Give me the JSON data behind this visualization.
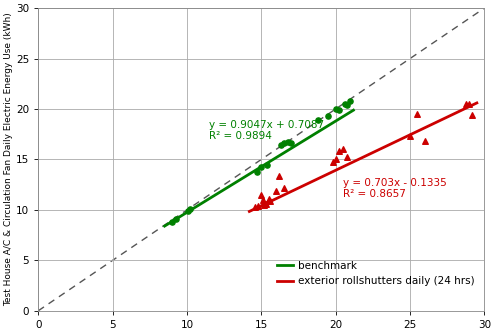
{
  "xlim": [
    0,
    30
  ],
  "ylim": [
    0,
    30
  ],
  "xticks": [
    0,
    5,
    10,
    15,
    20,
    25,
    30
  ],
  "yticks": [
    0,
    5,
    10,
    15,
    20,
    25,
    30
  ],
  "ylabel": "Test House A/C & Circulation Fan Daily Electric Energy Use (kWh)",
  "green_scatter_x": [
    9.0,
    9.3,
    10.1,
    10.2,
    14.7,
    15.0,
    15.4,
    16.3,
    16.5,
    16.8,
    17.0,
    18.8,
    19.5,
    20.0,
    20.2,
    20.6,
    20.8,
    21.0
  ],
  "green_scatter_y": [
    8.8,
    9.1,
    9.9,
    10.1,
    13.8,
    14.3,
    14.5,
    16.4,
    16.6,
    16.7,
    16.6,
    18.9,
    19.3,
    20.0,
    19.9,
    20.5,
    20.4,
    20.8
  ],
  "red_scatter_x": [
    14.6,
    14.8,
    15.0,
    15.1,
    15.2,
    15.3,
    15.5,
    15.6,
    16.0,
    16.2,
    16.5,
    19.8,
    20.0,
    20.2,
    20.5,
    20.8,
    25.0,
    25.5,
    26.0,
    28.8,
    29.0,
    29.2
  ],
  "red_scatter_y": [
    10.3,
    10.4,
    11.5,
    11.0,
    10.5,
    10.6,
    11.1,
    10.9,
    11.9,
    13.4,
    12.2,
    14.8,
    15.0,
    15.8,
    16.0,
    15.2,
    17.3,
    19.5,
    16.8,
    20.5,
    20.5,
    19.4
  ],
  "green_line_slope": 0.9047,
  "green_line_intercept": 0.7087,
  "red_line_slope": 0.703,
  "red_line_intercept": -0.1335,
  "green_eq": "y = 0.9047x + 0.7087",
  "green_r2": "R² = 0.9894",
  "red_eq": "y = 0.703x - 0.1335",
  "red_r2": "R² = 0.8657",
  "green_color": "#008000",
  "red_color": "#cc0000",
  "dashed_color": "#555555",
  "bg_color": "#ffffff",
  "grid_color": "#aaaaaa",
  "legend_benchmark": "benchmark",
  "legend_red": "exterior rollshutters daily (24 hrs)",
  "green_eq_x": 11.5,
  "green_eq_y": 16.8,
  "red_eq_x": 20.5,
  "red_eq_y": 13.2,
  "green_line_x": [
    8.5,
    21.2
  ],
  "red_line_x": [
    14.2,
    29.5
  ]
}
